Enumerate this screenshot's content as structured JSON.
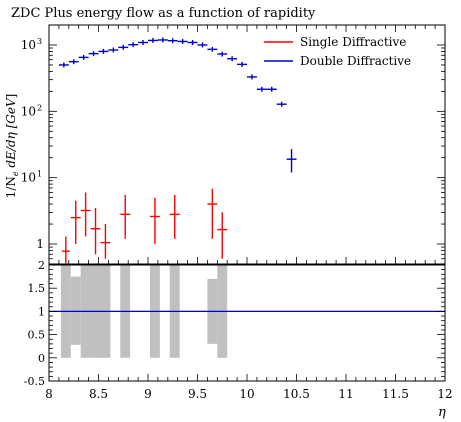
{
  "chart_data": {
    "type": "line",
    "title": "ZDC Plus energy flow as a function of rapidity",
    "xlabel": "η",
    "ylabel": "1/Nₑ dE/dη [GeV]",
    "ylabel_parts": {
      "prefix": "1/N",
      "sub": "e",
      "rest": " dE/dη [",
      "unit": "GeV",
      "end": "]"
    },
    "xlim": [
      8,
      12
    ],
    "ylim_log": [
      0.5,
      2000
    ],
    "ratio_ylim": [
      -0.5,
      2
    ],
    "x_ticks": [
      "8",
      "8.5",
      "9",
      "9.5",
      "10",
      "10.5",
      "11",
      "11.5",
      "12"
    ],
    "y_ticks_log": [
      {
        "value": 1,
        "label": "1",
        "exp": ""
      },
      {
        "value": 10,
        "label": "10",
        "exp": "1"
      },
      {
        "value": 100,
        "label": "10",
        "exp": "2"
      },
      {
        "value": 1000,
        "label": "10",
        "exp": "3"
      }
    ],
    "ratio_ticks": [
      "-0.5",
      "0",
      "0.5",
      "1",
      "1.5",
      "2"
    ],
    "legend_placement": "top-right",
    "series": [
      {
        "name": "Single Diffractive",
        "color": "#ff0000",
        "points": [
          {
            "x": 8.17,
            "y": 0.78,
            "ylo": 0.5,
            "yhi": 1.3,
            "xhw": 0.04
          },
          {
            "x": 8.27,
            "y": 2.5,
            "ylo": 1.0,
            "yhi": 4.5,
            "xhw": 0.05
          },
          {
            "x": 8.37,
            "y": 3.2,
            "ylo": 1.3,
            "yhi": 6.0,
            "xhw": 0.05
          },
          {
            "x": 8.47,
            "y": 1.7,
            "ylo": 0.7,
            "yhi": 3.5,
            "xhw": 0.05
          },
          {
            "x": 8.57,
            "y": 1.05,
            "ylo": 0.6,
            "yhi": 2.0,
            "xhw": 0.05
          },
          {
            "x": 8.77,
            "y": 2.8,
            "ylo": 1.2,
            "yhi": 5.5,
            "xhw": 0.05
          },
          {
            "x": 9.07,
            "y": 2.6,
            "ylo": 1.0,
            "yhi": 5.0,
            "xhw": 0.05
          },
          {
            "x": 9.27,
            "y": 2.8,
            "ylo": 1.2,
            "yhi": 5.5,
            "xhw": 0.05
          },
          {
            "x": 9.65,
            "y": 4.0,
            "ylo": 1.2,
            "yhi": 6.8,
            "xhw": 0.05
          },
          {
            "x": 9.75,
            "y": 1.65,
            "ylo": 0.6,
            "yhi": 3.0,
            "xhw": 0.05
          }
        ]
      },
      {
        "name": "Double Diffractive",
        "color": "#0000cc",
        "points": [
          {
            "x": 8.15,
            "y": 500,
            "xhw": 0.05
          },
          {
            "x": 8.25,
            "y": 560,
            "xhw": 0.05
          },
          {
            "x": 8.35,
            "y": 650,
            "xhw": 0.05
          },
          {
            "x": 8.45,
            "y": 740,
            "xhw": 0.05
          },
          {
            "x": 8.55,
            "y": 800,
            "xhw": 0.05
          },
          {
            "x": 8.65,
            "y": 840,
            "xhw": 0.05
          },
          {
            "x": 8.75,
            "y": 920,
            "xhw": 0.05
          },
          {
            "x": 8.85,
            "y": 1010,
            "xhw": 0.05
          },
          {
            "x": 8.95,
            "y": 1090,
            "xhw": 0.05
          },
          {
            "x": 9.05,
            "y": 1170,
            "xhw": 0.05
          },
          {
            "x": 9.15,
            "y": 1190,
            "xhw": 0.05
          },
          {
            "x": 9.25,
            "y": 1160,
            "xhw": 0.05
          },
          {
            "x": 9.35,
            "y": 1130,
            "xhw": 0.05
          },
          {
            "x": 9.45,
            "y": 1090,
            "xhw": 0.05
          },
          {
            "x": 9.55,
            "y": 1000,
            "xhw": 0.05
          },
          {
            "x": 9.65,
            "y": 860,
            "xhw": 0.05
          },
          {
            "x": 9.75,
            "y": 730,
            "xhw": 0.05
          },
          {
            "x": 9.85,
            "y": 620,
            "xhw": 0.05
          },
          {
            "x": 9.95,
            "y": 510,
            "xhw": 0.05
          },
          {
            "x": 10.05,
            "y": 330,
            "xhw": 0.05
          },
          {
            "x": 10.15,
            "y": 215,
            "xhw": 0.05
          },
          {
            "x": 10.25,
            "y": 215,
            "xhw": 0.05
          },
          {
            "x": 10.35,
            "y": 128,
            "xhw": 0.05
          },
          {
            "x": 10.45,
            "y": 19,
            "ylo": 12,
            "yhi": 27,
            "xhw": 0.05
          }
        ]
      }
    ],
    "ratio_bands": [
      {
        "x0": 8.12,
        "x1": 8.22,
        "lo": 0.0,
        "hi": 2.0
      },
      {
        "x0": 8.22,
        "x1": 8.32,
        "lo": 0.28,
        "hi": 1.75
      },
      {
        "x0": 8.32,
        "x1": 8.42,
        "lo": 0.0,
        "hi": 2.0
      },
      {
        "x0": 8.42,
        "x1": 8.52,
        "lo": 0.0,
        "hi": 2.0
      },
      {
        "x0": 8.52,
        "x1": 8.62,
        "lo": 0.0,
        "hi": 2.0
      },
      {
        "x0": 8.72,
        "x1": 8.82,
        "lo": 0.0,
        "hi": 2.0
      },
      {
        "x0": 9.02,
        "x1": 9.12,
        "lo": 0.0,
        "hi": 2.0
      },
      {
        "x0": 9.22,
        "x1": 9.32,
        "lo": 0.0,
        "hi": 2.0
      },
      {
        "x0": 9.6,
        "x1": 9.7,
        "lo": 0.3,
        "hi": 1.7
      },
      {
        "x0": 9.7,
        "x1": 9.8,
        "lo": 0.0,
        "hi": 2.0
      }
    ],
    "ratio_line": 1,
    "band_color": "#c0c0c0"
  }
}
